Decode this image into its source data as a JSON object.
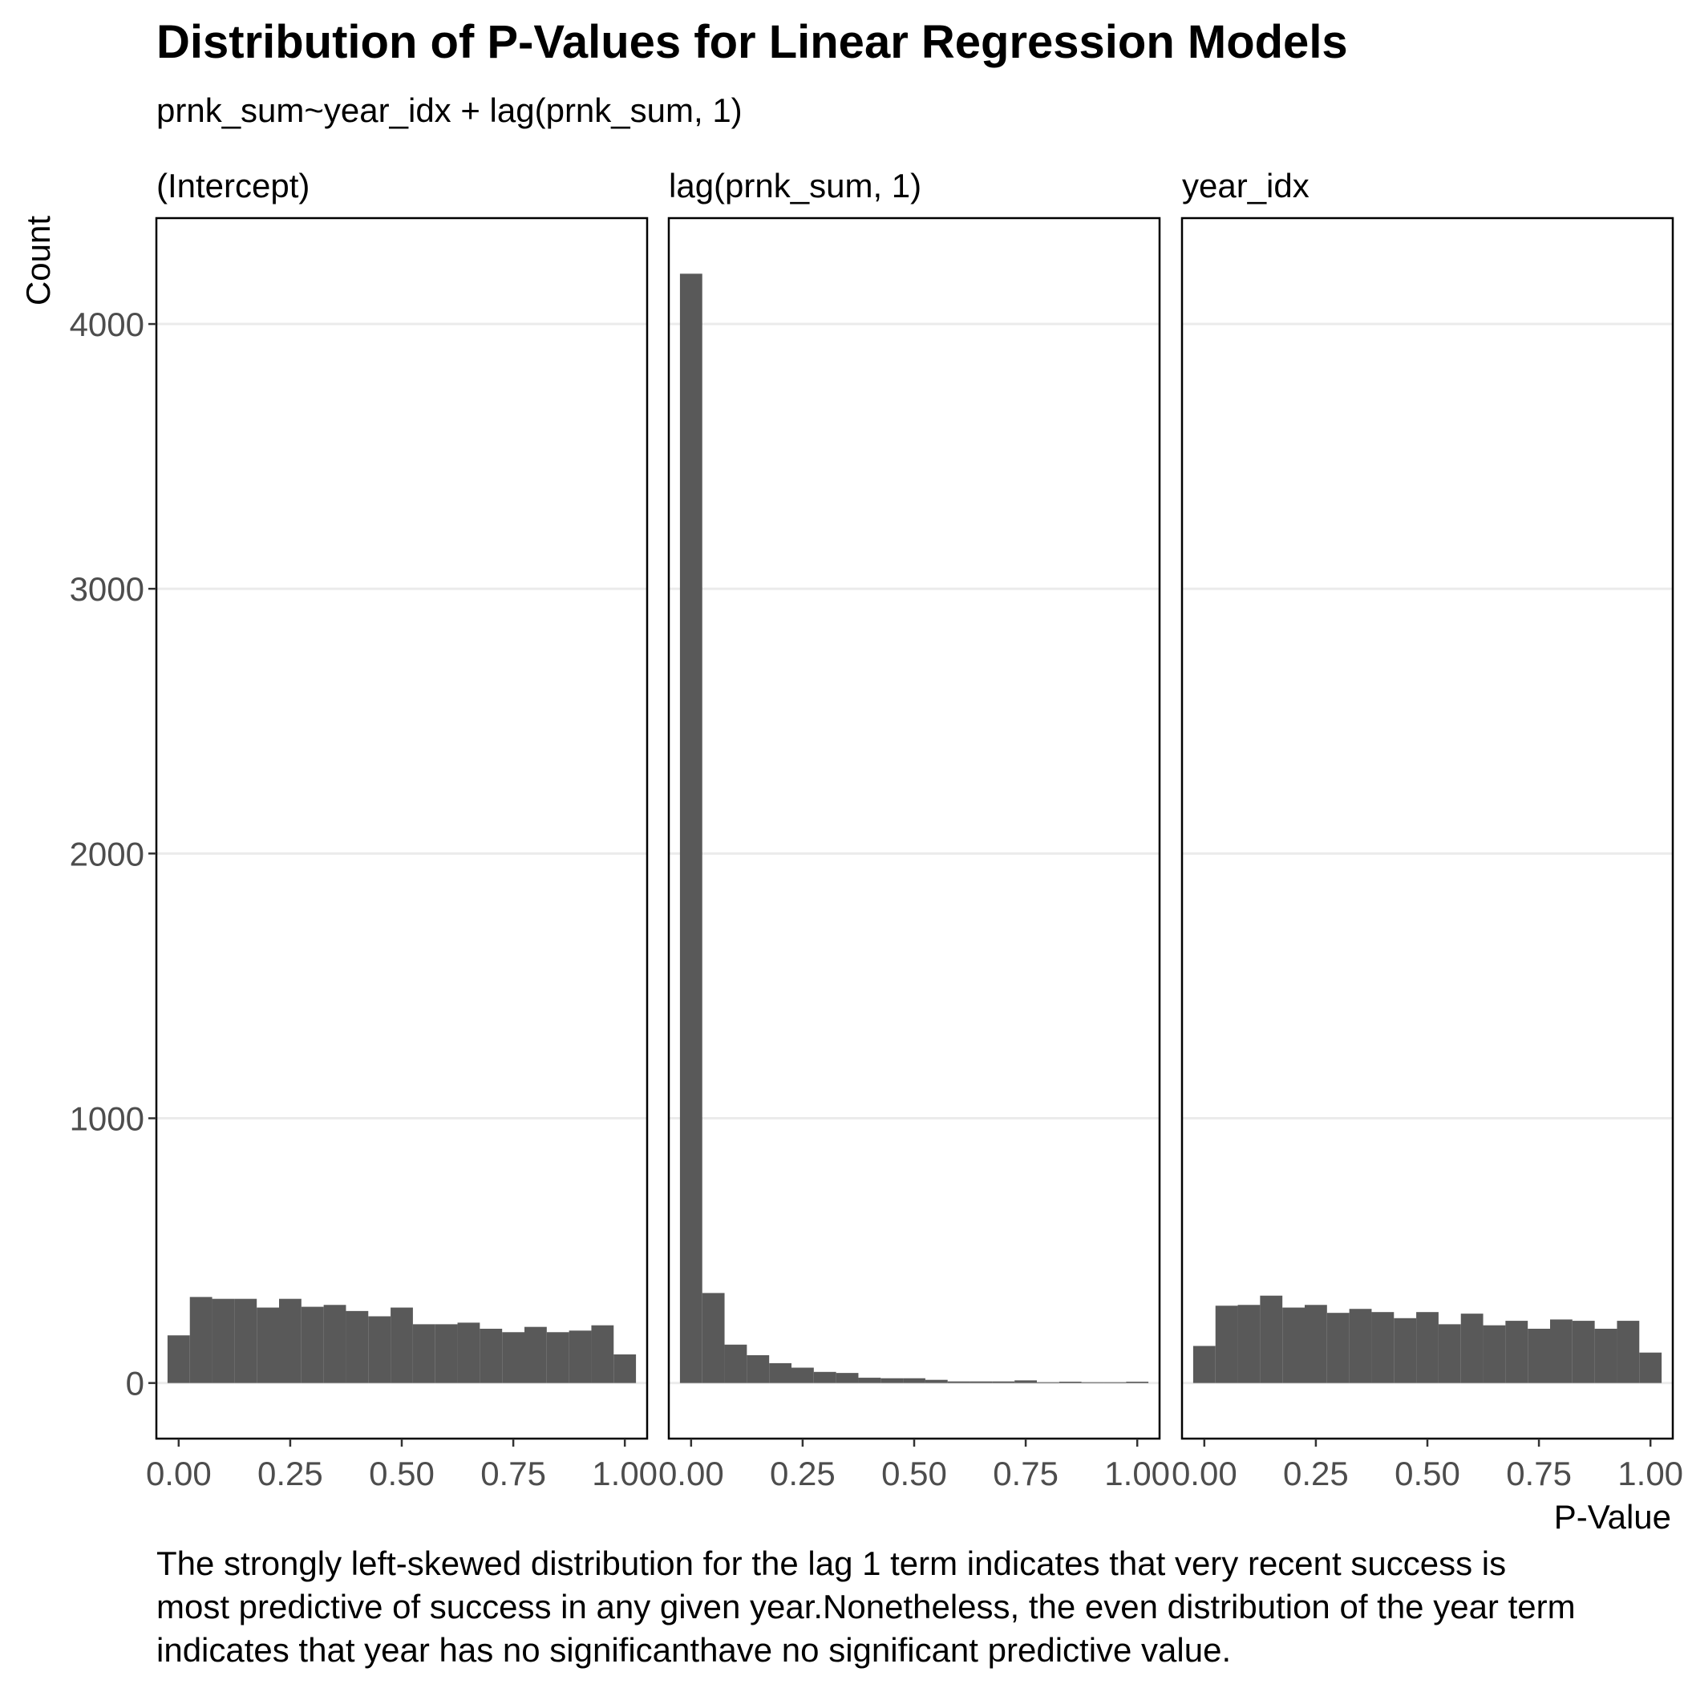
{
  "chart_data": {
    "type": "bar",
    "title": "Distribution of P-Values for Linear Regression Models",
    "subtitle": "prnk_sum~year_idx + lag(prnk_sum, 1)",
    "xlabel": "P-Value",
    "ylabel": "Count",
    "xlim": [
      -0.05,
      1.05
    ],
    "ylim": [
      -210,
      4400
    ],
    "x_ticks": [
      0,
      0.25,
      0.5,
      0.75,
      1.0
    ],
    "x_tick_labels": [
      "0.00",
      "0.25",
      "0.50",
      "0.75",
      "1.00"
    ],
    "y_ticks": [
      0,
      1000,
      2000,
      3000,
      4000
    ],
    "y_tick_labels": [
      "0",
      "1000",
      "2000",
      "3000",
      "4000"
    ],
    "grid": true,
    "bin_width": 0.05,
    "bin_centers": [
      0.0,
      0.05,
      0.1,
      0.15,
      0.2,
      0.25,
      0.3,
      0.35,
      0.4,
      0.45,
      0.5,
      0.55,
      0.6,
      0.65,
      0.7,
      0.75,
      0.8,
      0.85,
      0.9,
      0.95,
      1.0
    ],
    "facets": [
      {
        "label": "(Intercept)",
        "values": [
          180,
          325,
          318,
          318,
          285,
          318,
          288,
          295,
          272,
          252,
          285,
          222,
          222,
          228,
          205,
          192,
          212,
          192,
          198,
          218,
          108
        ]
      },
      {
        "label": "lag(prnk_sum, 1)",
        "values": [
          4190,
          340,
          145,
          105,
          75,
          58,
          42,
          38,
          20,
          18,
          18,
          12,
          6,
          6,
          6,
          10,
          3,
          5,
          3,
          3,
          5
        ]
      },
      {
        "label": "year_idx",
        "values": [
          140,
          292,
          295,
          330,
          285,
          295,
          265,
          280,
          268,
          245,
          268,
          222,
          262,
          218,
          235,
          205,
          240,
          235,
          205,
          235,
          115
        ]
      }
    ],
    "caption_lines": [
      "The strongly left-skewed distribution for the lag 1 term indicates that very recent success is",
      "most predictive of success in any given year.Nonetheless, the even distribution of the year term",
      "indicates that year has no significanthave no significant predictive value."
    ]
  }
}
